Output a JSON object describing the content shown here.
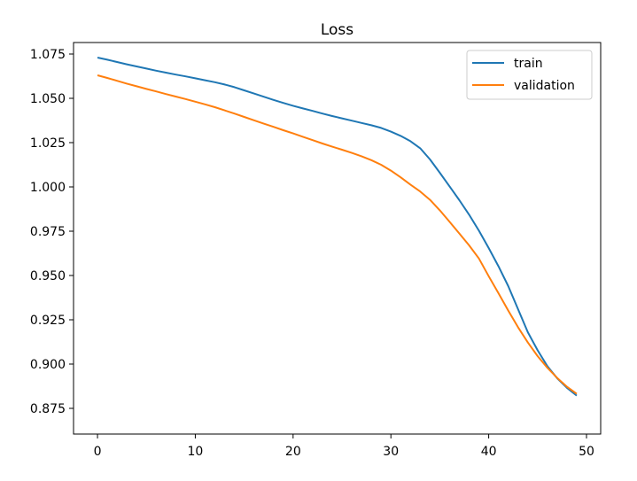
{
  "chart_data": {
    "type": "line",
    "title": "Loss",
    "xlabel": "",
    "ylabel": "",
    "xlim": [
      -2.45,
      51.45
    ],
    "ylim": [
      0.8605,
      1.0815
    ],
    "xticks": [
      0,
      10,
      20,
      30,
      40,
      50
    ],
    "yticks": [
      0.875,
      0.9,
      0.925,
      0.95,
      0.975,
      1.0,
      1.025,
      1.05,
      1.075
    ],
    "ytick_labels": [
      "0.875",
      "0.900",
      "0.925",
      "0.950",
      "0.975",
      "1.000",
      "1.025",
      "1.050",
      "1.075"
    ],
    "xtick_labels": [
      "0",
      "10",
      "20",
      "30",
      "40",
      "50"
    ],
    "grid": false,
    "legend_position": "top-right",
    "x": [
      0,
      1,
      2,
      3,
      4,
      5,
      6,
      7,
      8,
      9,
      10,
      11,
      12,
      13,
      14,
      15,
      16,
      17,
      18,
      19,
      20,
      21,
      22,
      23,
      24,
      25,
      26,
      27,
      28,
      29,
      30,
      31,
      32,
      33,
      34,
      35,
      36,
      37,
      38,
      39,
      40,
      41,
      42,
      43,
      44,
      45,
      46,
      47,
      48,
      49
    ],
    "series": [
      {
        "name": "train",
        "color": "#1f77b4",
        "values": [
          1.073,
          1.0718,
          1.0705,
          1.0692,
          1.068,
          1.0668,
          1.0656,
          1.0645,
          1.0634,
          1.0624,
          1.0613,
          1.0602,
          1.0591,
          1.0578,
          1.0563,
          1.0545,
          1.0527,
          1.0509,
          1.0491,
          1.0474,
          1.0458,
          1.0443,
          1.0429,
          1.0414,
          1.04,
          1.0387,
          1.0374,
          1.0361,
          1.0348,
          1.0333,
          1.0312,
          1.0288,
          1.0258,
          1.0218,
          1.0155,
          1.008,
          1.0003,
          0.9925,
          0.9843,
          0.9753,
          0.9655,
          0.9552,
          0.944,
          0.931,
          0.918,
          0.9078,
          0.8988,
          0.892,
          0.8866,
          0.8822
        ]
      },
      {
        "name": "validation",
        "color": "#ff7f0e",
        "values": [
          1.063,
          1.0615,
          1.0599,
          1.0583,
          1.0568,
          1.0553,
          1.0539,
          1.0524,
          1.051,
          1.0496,
          1.0481,
          1.0466,
          1.045,
          1.0432,
          1.0414,
          1.0395,
          1.0376,
          1.0357,
          1.0339,
          1.032,
          1.0302,
          1.0283,
          1.0264,
          1.0245,
          1.0227,
          1.021,
          1.0192,
          1.0173,
          1.0151,
          1.0125,
          1.0092,
          1.0054,
          1.0013,
          0.9974,
          0.9927,
          0.9868,
          0.9803,
          0.9737,
          0.967,
          0.9596,
          0.9496,
          0.94,
          0.9302,
          0.9208,
          0.9122,
          0.9045,
          0.8979,
          0.8922,
          0.8872,
          0.8832
        ]
      }
    ]
  }
}
